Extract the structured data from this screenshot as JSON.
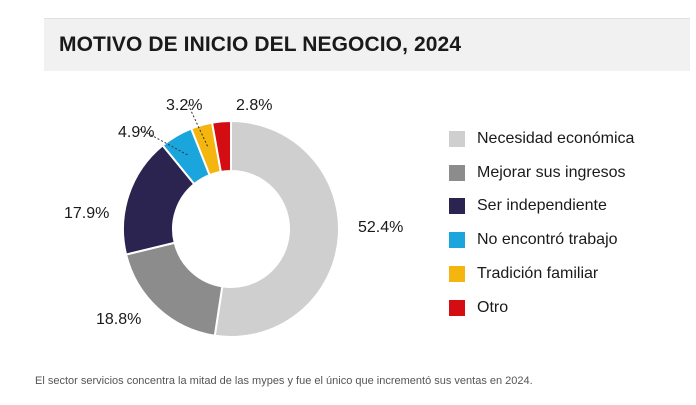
{
  "chart_data": {
    "type": "pie",
    "title": "MOTIVO DE INICIO DEL NEGOCIO, 2024",
    "categories": [
      "Necesidad económica",
      "Mejorar sus ingresos",
      "Ser independiente",
      "No encontró trabajo",
      "Tradición familiar",
      "Otro"
    ],
    "values": [
      52.4,
      18.8,
      17.9,
      4.9,
      3.2,
      2.8
    ],
    "value_labels": [
      "52.4%",
      "18.8%",
      "17.9%",
      "4.9%",
      "3.2%",
      "2.8%"
    ],
    "colors": [
      "#cfcfcf",
      "#8c8c8c",
      "#2b2350",
      "#1aa6dc",
      "#f5b50f",
      "#d40d12"
    ],
    "legend_position": "right",
    "donut": true
  },
  "caption": "El sector servicios concentra la mitad de las mypes y fue el único que incrementó sus ventas en 2024."
}
